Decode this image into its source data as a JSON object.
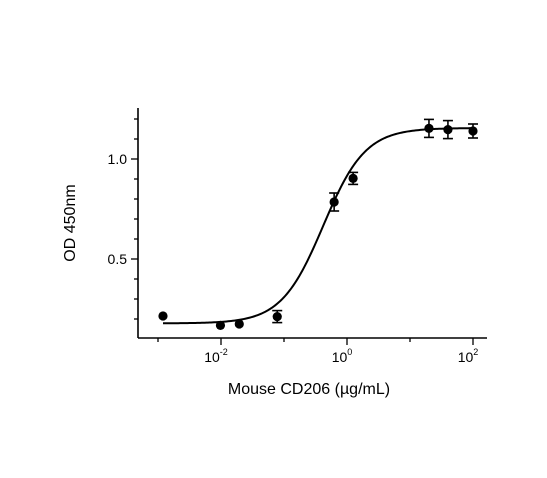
{
  "chart_data": {
    "type": "scatter",
    "xlabel": "Mouse CD206 (µg/mL)",
    "ylabel": "OD 450nm",
    "x_scale": "log10",
    "xlim": [
      0.0007,
      120
    ],
    "ylim": [
      0.0,
      1.26
    ],
    "x_ticks": [
      {
        "value": 0.01,
        "base": "10",
        "exp": "-2"
      },
      {
        "value": 1,
        "base": "10",
        "exp": "0"
      },
      {
        "value": 100,
        "base": "10",
        "exp": "2"
      }
    ],
    "y_ticks": [
      {
        "value": 0.5,
        "label": "0.5"
      },
      {
        "value": 1.0,
        "label": "1.0"
      }
    ],
    "points": [
      {
        "x": 0.0012,
        "y": 0.215,
        "err": 0.0
      },
      {
        "x": 0.0098,
        "y": 0.168,
        "err": 0.0
      },
      {
        "x": 0.0195,
        "y": 0.175,
        "err": 0.0
      },
      {
        "x": 0.0781,
        "y": 0.212,
        "err": 0.03
      },
      {
        "x": 0.625,
        "y": 0.785,
        "err": 0.045
      },
      {
        "x": 1.25,
        "y": 0.903,
        "err": 0.03
      },
      {
        "x": 20,
        "y": 1.153,
        "err": 0.045
      },
      {
        "x": 40,
        "y": 1.147,
        "err": 0.045
      },
      {
        "x": 100,
        "y": 1.14,
        "err": 0.035
      }
    ],
    "fit": {
      "model": "4PL",
      "bottom": 0.178,
      "top": 1.155,
      "ec50": 0.42,
      "hill": 1.3
    },
    "grid": false,
    "legend": "none"
  }
}
